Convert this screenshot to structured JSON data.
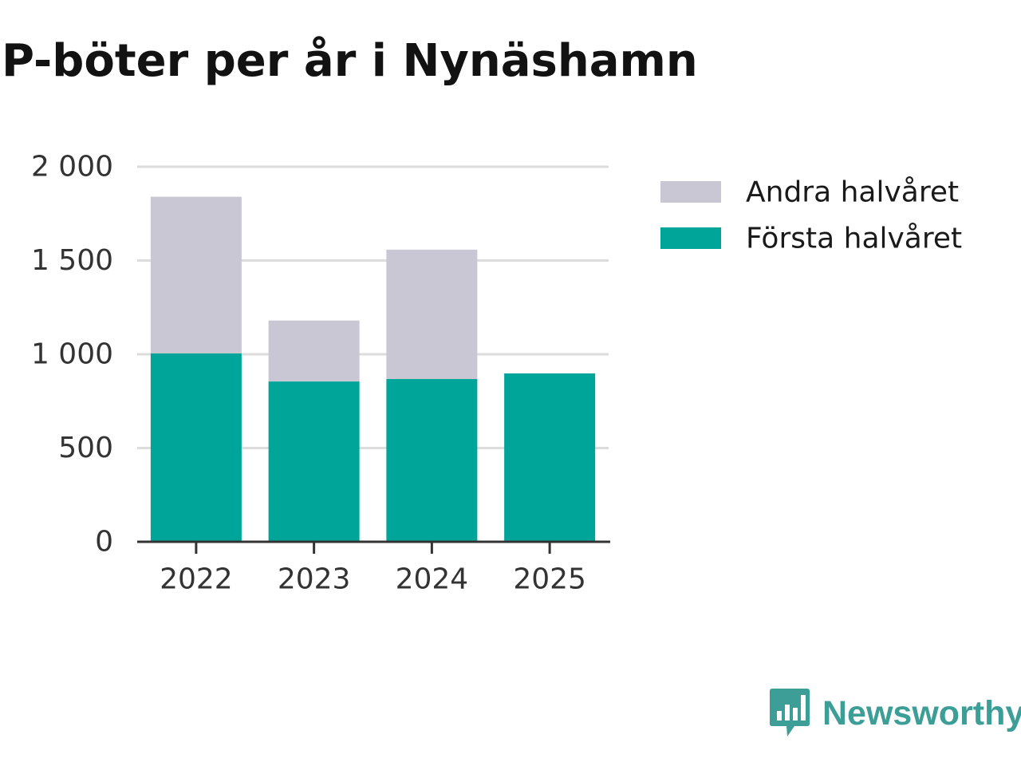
{
  "title": "P-böter per år i Nynäshamn",
  "brand": {
    "name": "Newsworthy",
    "logo_icon": "newsworthy-bar-chart-speech-bubble-icon",
    "color": "#3c9e97"
  },
  "chart_data": {
    "type": "bar",
    "stacked": true,
    "title": "P-böter per år i Nynäshamn",
    "xlabel": "",
    "ylabel": "",
    "categories": [
      "2022",
      "2023",
      "2024",
      "2025"
    ],
    "series": [
      {
        "name": "Första halvåret",
        "color": "#00a59a",
        "values": [
          1005,
          855,
          868,
          898
        ]
      },
      {
        "name": "Andra halvåret",
        "color": "#c8c7d3",
        "values": [
          835,
          325,
          690,
          0
        ]
      }
    ],
    "ylim": [
      0,
      2000
    ],
    "yticks": [
      0,
      500,
      1000,
      1500,
      2000
    ],
    "ytick_labels": [
      "0",
      "500",
      "1 000",
      "1 500",
      "2 000"
    ],
    "grid": true,
    "legend": {
      "position": "right",
      "order": [
        "Andra halvåret",
        "Första halvåret"
      ]
    }
  }
}
